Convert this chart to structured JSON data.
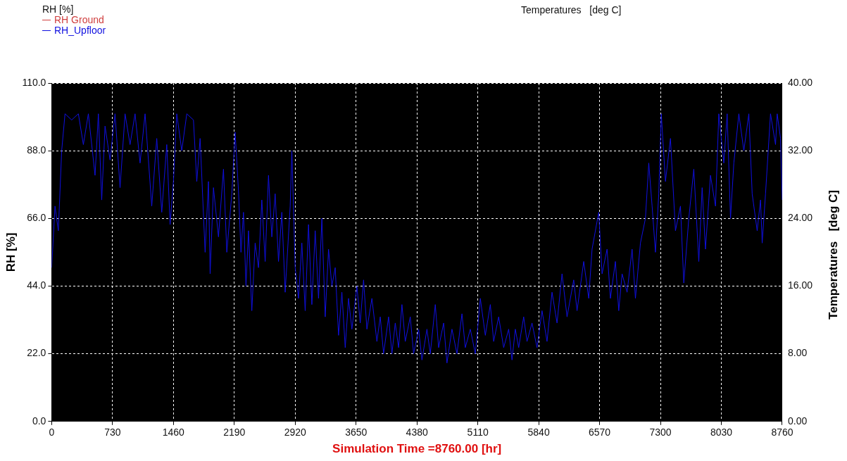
{
  "chart_data": {
    "type": "line",
    "legend_title": "RH [%]",
    "ylabel": "RH [%]",
    "y2label": "Temperatures   [deg C]",
    "xlabel": "Simulation Time =8760.00 [hr]",
    "annotations": [
      "Temperatures   [deg C]"
    ],
    "xlim": [
      0,
      8760
    ],
    "xticks": [
      0,
      730,
      1460,
      2190,
      2920,
      3650,
      4380,
      5110,
      5840,
      6570,
      7300,
      8030,
      8760
    ],
    "ylim": [
      0,
      110
    ],
    "yticks": [
      {
        "value": 0,
        "label": "0.0"
      },
      {
        "value": 22,
        "label": "22.0"
      },
      {
        "value": 44,
        "label": "44.0"
      },
      {
        "value": 66,
        "label": "66.0"
      },
      {
        "value": 88,
        "label": "88.0"
      },
      {
        "value": 110,
        "label": "110.0"
      }
    ],
    "y2lim": [
      0,
      40
    ],
    "y2ticks": [
      {
        "value": 0,
        "label": "0.00"
      },
      {
        "value": 8,
        "label": "8.00"
      },
      {
        "value": 16,
        "label": "16.00"
      },
      {
        "value": 24,
        "label": "24.00"
      },
      {
        "value": 32,
        "label": "32.00"
      },
      {
        "value": 40,
        "label": "40.00"
      }
    ],
    "grid": true,
    "legend": "top left",
    "line_style": "solid",
    "marker": "none",
    "series": [
      {
        "name": "RH  Ground",
        "color": "#d04040"
      },
      {
        "name": "RH_Upfloor",
        "color": "#1010e0",
        "x": [
          0,
          40,
          80,
          120,
          160,
          240,
          320,
          380,
          440,
          520,
          560,
          600,
          640,
          700,
          760,
          820,
          880,
          940,
          1000,
          1060,
          1120,
          1200,
          1260,
          1320,
          1380,
          1420,
          1460,
          1500,
          1560,
          1620,
          1700,
          1740,
          1780,
          1840,
          1880,
          1900,
          1940,
          2000,
          2060,
          2100,
          2160,
          2200,
          2240,
          2270,
          2300,
          2330,
          2360,
          2400,
          2440,
          2480,
          2520,
          2560,
          2600,
          2640,
          2680,
          2720,
          2760,
          2800,
          2860,
          2880,
          2920,
          2960,
          3000,
          3040,
          3080,
          3120,
          3160,
          3200,
          3240,
          3280,
          3320,
          3360,
          3400,
          3440,
          3480,
          3520,
          3560,
          3600,
          3660,
          3700,
          3740,
          3780,
          3840,
          3900,
          3940,
          3980,
          4040,
          4080,
          4120,
          4160,
          4200,
          4240,
          4300,
          4340,
          4400,
          4440,
          4500,
          4540,
          4600,
          4640,
          4700,
          4740,
          4800,
          4860,
          4920,
          4960,
          5020,
          5080,
          5140,
          5200,
          5260,
          5300,
          5360,
          5420,
          5480,
          5520,
          5560,
          5600,
          5660,
          5700,
          5760,
          5820,
          5880,
          5940,
          6000,
          6060,
          6120,
          6180,
          6260,
          6300,
          6380,
          6440,
          6480,
          6560,
          6600,
          6660,
          6700,
          6760,
          6800,
          6840,
          6900,
          6960,
          7000,
          7060,
          7120,
          7160,
          7200,
          7240,
          7280,
          7310,
          7360,
          7420,
          7480,
          7540,
          7580,
          7640,
          7700,
          7760,
          7800,
          7840,
          7900,
          7960,
          8000,
          8060,
          8100,
          8140,
          8180,
          8240,
          8300,
          8360,
          8400,
          8460,
          8500,
          8520,
          8560,
          8620,
          8680,
          8700,
          8740,
          8760
        ],
        "values": [
          50,
          70,
          62,
          88,
          100,
          98,
          100,
          90,
          100,
          80,
          100,
          72,
          96,
          85,
          100,
          76,
          100,
          90,
          100,
          84,
          100,
          70,
          92,
          68,
          90,
          64,
          78,
          100,
          88,
          100,
          98,
          78,
          92,
          55,
          78,
          48,
          76,
          60,
          82,
          55,
          74,
          94,
          75,
          55,
          68,
          44,
          62,
          36,
          58,
          50,
          72,
          52,
          80,
          60,
          74,
          52,
          68,
          42,
          70,
          88,
          50,
          40,
          58,
          36,
          64,
          38,
          62,
          40,
          66,
          34,
          56,
          44,
          50,
          28,
          42,
          24,
          40,
          30,
          44,
          32,
          46,
          30,
          40,
          26,
          34,
          22,
          34,
          22,
          32,
          24,
          38,
          26,
          34,
          22,
          30,
          20,
          30,
          22,
          38,
          24,
          32,
          19,
          30,
          22,
          35,
          24,
          30,
          22,
          40,
          28,
          38,
          26,
          34,
          24,
          30,
          20,
          30,
          24,
          34,
          26,
          32,
          24,
          36,
          26,
          42,
          32,
          48,
          34,
          46,
          36,
          52,
          40,
          56,
          68,
          48,
          56,
          40,
          52,
          36,
          48,
          42,
          56,
          40,
          58,
          66,
          84,
          70,
          55,
          74,
          100,
          78,
          92,
          62,
          70,
          45,
          66,
          82,
          52,
          76,
          56,
          80,
          70,
          100,
          84,
          100,
          66,
          84,
          100,
          88,
          100,
          74,
          62,
          72,
          58,
          74,
          100,
          90,
          100,
          92,
          72
        ]
      }
    ]
  }
}
